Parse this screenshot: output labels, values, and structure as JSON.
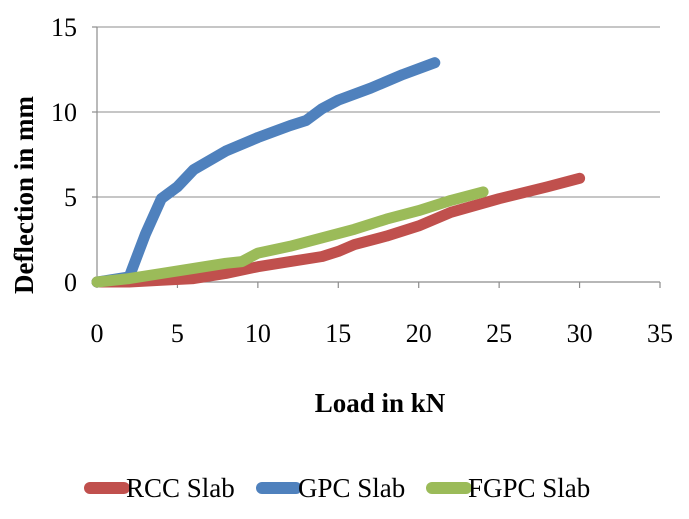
{
  "chart_data": {
    "type": "line",
    "title": "",
    "xlabel": "Load in kN",
    "ylabel": "Deflection in mm",
    "xlim": [
      0,
      35
    ],
    "ylim": [
      0,
      15
    ],
    "x_ticks": [
      "0",
      "5",
      "10",
      "15",
      "20",
      "25",
      "30",
      "35"
    ],
    "y_ticks": [
      "0",
      "5",
      "10",
      "15"
    ],
    "grid": "horizontal",
    "legend_position": "bottom",
    "series": [
      {
        "name": "RCC Slab",
        "color": "#c0504d",
        "x": [
          0,
          2,
          4,
          6,
          8,
          10,
          12,
          14,
          15,
          16,
          18,
          20,
          22,
          25,
          28,
          30
        ],
        "y": [
          0,
          0,
          0.1,
          0.2,
          0.5,
          0.9,
          1.2,
          1.5,
          1.8,
          2.2,
          2.7,
          3.3,
          4.1,
          4.9,
          5.6,
          6.1
        ]
      },
      {
        "name": "GPC Slab",
        "color": "#4f81bd",
        "x": [
          0,
          2,
          3,
          4,
          5,
          6,
          8,
          10,
          12,
          13,
          14,
          15,
          17,
          19,
          21
        ],
        "y": [
          0,
          0.3,
          2.8,
          4.9,
          5.6,
          6.6,
          7.7,
          8.5,
          9.2,
          9.5,
          10.2,
          10.7,
          11.4,
          12.2,
          12.9
        ]
      },
      {
        "name": "FGPC Slab",
        "color": "#9bbb59",
        "x": [
          0,
          2,
          4,
          6,
          8,
          9,
          10,
          12,
          14,
          16,
          18,
          20,
          22,
          24
        ],
        "y": [
          0,
          0.2,
          0.5,
          0.8,
          1.1,
          1.2,
          1.7,
          2.1,
          2.6,
          3.1,
          3.7,
          4.2,
          4.8,
          5.3
        ]
      }
    ]
  }
}
